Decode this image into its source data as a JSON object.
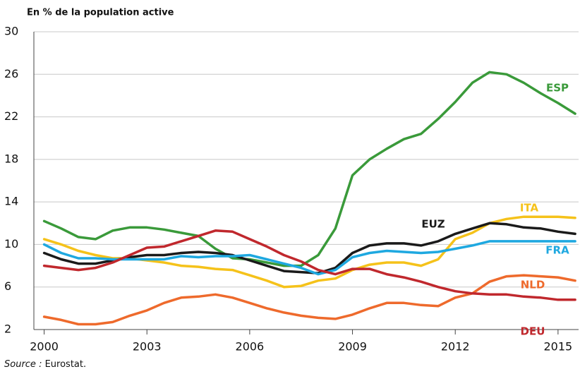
{
  "chart_data": {
    "type": "line",
    "title": "En % de la population active",
    "source_label": "Source :",
    "source": "Eurostat.",
    "x": [
      2000,
      2000.5,
      2001,
      2001.5,
      2002,
      2002.5,
      2003,
      2003.5,
      2004,
      2004.5,
      2005,
      2005.5,
      2006,
      2006.5,
      2007,
      2007.5,
      2008,
      2008.5,
      2009,
      2009.5,
      2010,
      2010.5,
      2011,
      2011.5,
      2012,
      2012.5,
      2013,
      2013.5,
      2014,
      2014.5,
      2015,
      2015.5
    ],
    "xlim": [
      1999.7,
      2015.6
    ],
    "xticks": [
      2000,
      2003,
      2006,
      2009,
      2012,
      2015
    ],
    "ylim": [
      2,
      30
    ],
    "yticks": [
      2,
      6,
      10,
      14,
      18,
      22,
      26,
      30
    ],
    "grid": true,
    "series": [
      {
        "name": "ESP",
        "color": "#3a9a3a",
        "values": [
          12.2,
          11.5,
          10.7,
          10.5,
          11.3,
          11.6,
          11.6,
          11.4,
          11.1,
          10.8,
          9.6,
          8.7,
          8.6,
          8.3,
          8.0,
          8.0,
          9.0,
          11.5,
          16.5,
          18.0,
          19.0,
          19.9,
          20.4,
          21.8,
          23.4,
          25.2,
          26.2,
          26.0,
          25.2,
          24.2,
          23.3,
          22.3
        ]
      },
      {
        "name": "ITA",
        "color": "#f5c21a",
        "values": [
          10.5,
          10.0,
          9.4,
          9.0,
          8.7,
          8.7,
          8.5,
          8.3,
          8.0,
          7.9,
          7.7,
          7.6,
          7.1,
          6.6,
          6.0,
          6.1,
          6.6,
          6.8,
          7.6,
          8.1,
          8.3,
          8.3,
          8.0,
          8.6,
          10.5,
          11.1,
          12.0,
          12.4,
          12.6,
          12.6,
          12.6,
          12.5
        ]
      },
      {
        "name": "EUZ",
        "color": "#1a1a1a",
        "values": [
          9.2,
          8.6,
          8.2,
          8.2,
          8.5,
          8.8,
          9.0,
          9.0,
          9.2,
          9.3,
          9.2,
          9.0,
          8.5,
          8.0,
          7.5,
          7.4,
          7.3,
          7.8,
          9.2,
          9.9,
          10.1,
          10.1,
          9.9,
          10.3,
          11.0,
          11.5,
          12.0,
          11.9,
          11.6,
          11.5,
          11.2,
          11.0
        ]
      },
      {
        "name": "FRA",
        "color": "#1ea8e0",
        "values": [
          10.0,
          9.2,
          8.7,
          8.7,
          8.6,
          8.6,
          8.6,
          8.6,
          8.9,
          8.8,
          8.9,
          8.9,
          9.0,
          8.6,
          8.2,
          7.8,
          7.2,
          7.6,
          8.8,
          9.2,
          9.4,
          9.3,
          9.2,
          9.3,
          9.6,
          9.9,
          10.3,
          10.3,
          10.3,
          10.3,
          10.3,
          10.3
        ]
      },
      {
        "name": "NLD",
        "color": "#ee6a2c",
        "values": [
          3.2,
          2.9,
          2.5,
          2.5,
          2.7,
          3.3,
          3.8,
          4.5,
          5.0,
          5.1,
          5.3,
          5.0,
          4.5,
          4.0,
          3.6,
          3.3,
          3.1,
          3.0,
          3.4,
          4.0,
          4.5,
          4.5,
          4.3,
          4.2,
          5.0,
          5.4,
          6.5,
          7.0,
          7.1,
          7.0,
          6.9,
          6.6
        ]
      },
      {
        "name": "DEU",
        "color": "#c0282d",
        "values": [
          8.0,
          7.8,
          7.6,
          7.8,
          8.3,
          9.0,
          9.7,
          9.8,
          10.3,
          10.8,
          11.3,
          11.2,
          10.5,
          9.8,
          9.0,
          8.4,
          7.6,
          7.2,
          7.7,
          7.7,
          7.2,
          6.9,
          6.5,
          6.0,
          5.6,
          5.4,
          5.3,
          5.3,
          5.1,
          5.0,
          4.8,
          4.8
        ]
      }
    ]
  }
}
